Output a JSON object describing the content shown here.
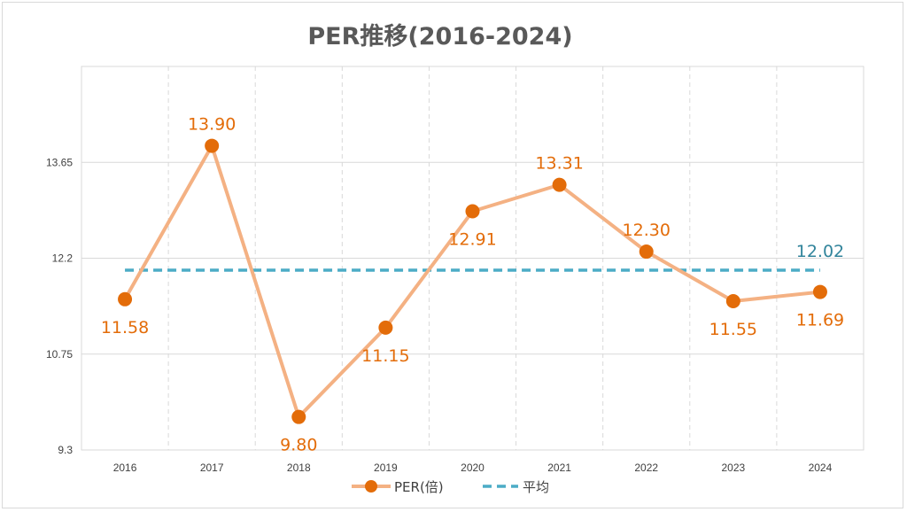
{
  "chart_data": {
    "type": "line",
    "title": "PER推移(2016-2024)",
    "categories": [
      "2016",
      "2017",
      "2018",
      "2019",
      "2020",
      "2021",
      "2022",
      "2023",
      "2024"
    ],
    "series": [
      {
        "name": "PER(倍)",
        "values": [
          11.58,
          13.9,
          9.8,
          11.15,
          12.91,
          13.31,
          12.3,
          11.55,
          11.69
        ],
        "labels": [
          "11.58",
          "13.90",
          "9.80",
          "11.15",
          "12.91",
          "13.31",
          "12.30",
          "11.55",
          "11.69"
        ],
        "line_color": "#f4b183",
        "marker_color": "#e36c09",
        "label_color": "#e36c09"
      },
      {
        "name": "平均",
        "value": 12.02,
        "label": "12.02",
        "color": "#4bacc6",
        "label_color": "#31849b",
        "style": "dashed"
      }
    ],
    "ylim": [
      9.3,
      15.1
    ],
    "yticks": [
      "9.3",
      "10.75",
      "12.2",
      "13.65"
    ],
    "ytick_values": [
      9.3,
      10.75,
      12.2,
      13.65
    ],
    "grid": true,
    "legend_position": "bottom"
  }
}
